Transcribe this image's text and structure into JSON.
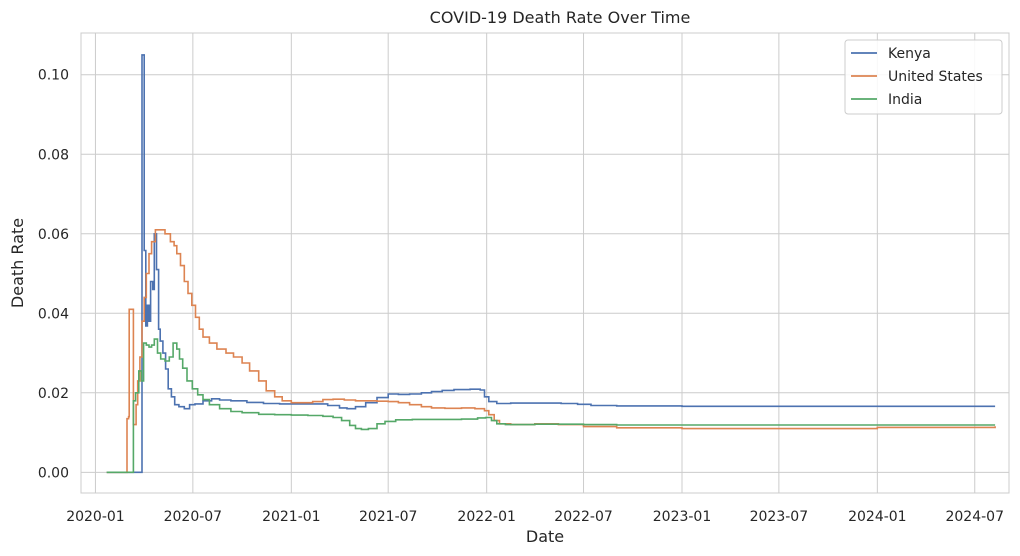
{
  "chart_data": {
    "type": "line",
    "title": "COVID-19 Death Rate Over Time",
    "xlabel": "Date",
    "ylabel": "Death Rate",
    "xlim": [
      "2019-12-05",
      "2024-09-03"
    ],
    "ylim": [
      -0.0052,
      0.1105
    ],
    "grid": true,
    "legend_position": "top-right",
    "x_ticks": [
      "2020-01-01",
      "2020-07-01",
      "2021-01-01",
      "2021-07-01",
      "2022-01-01",
      "2022-07-01",
      "2023-01-01",
      "2023-07-01",
      "2024-01-01",
      "2024-07-01"
    ],
    "x_tick_labels": [
      "2020-01",
      "2020-07",
      "2021-01",
      "2021-07",
      "2022-01",
      "2022-07",
      "2023-01",
      "2023-07",
      "2024-01",
      "2024-07"
    ],
    "y_ticks": [
      0.0,
      0.02,
      0.04,
      0.06,
      0.08,
      0.1
    ],
    "y_tick_labels": [
      "0.00",
      "0.02",
      "0.04",
      "0.06",
      "0.08",
      "0.10"
    ],
    "series": [
      {
        "name": "Kenya",
        "color": "#4c72b0",
        "points": [
          [
            "2020-01-22",
            0.0
          ],
          [
            "2020-03-13",
            0.0
          ],
          [
            "2020-03-27",
            0.0
          ],
          [
            "2020-03-28",
            0.105
          ],
          [
            "2020-04-01",
            0.0558
          ],
          [
            "2020-04-04",
            0.0368
          ],
          [
            "2020-04-07",
            0.042
          ],
          [
            "2020-04-10",
            0.038
          ],
          [
            "2020-04-13",
            0.048
          ],
          [
            "2020-04-17",
            0.046
          ],
          [
            "2020-04-20",
            0.06
          ],
          [
            "2020-04-24",
            0.051
          ],
          [
            "2020-04-28",
            0.036
          ],
          [
            "2020-05-01",
            0.033
          ],
          [
            "2020-05-06",
            0.03
          ],
          [
            "2020-05-11",
            0.026
          ],
          [
            "2020-05-16",
            0.021
          ],
          [
            "2020-05-22",
            0.019
          ],
          [
            "2020-05-28",
            0.017
          ],
          [
            "2020-06-05",
            0.0165
          ],
          [
            "2020-06-15",
            0.016
          ],
          [
            "2020-06-25",
            0.017
          ],
          [
            "2020-07-05",
            0.0172
          ],
          [
            "2020-07-20",
            0.018
          ],
          [
            "2020-08-05",
            0.0185
          ],
          [
            "2020-08-20",
            0.0182
          ],
          [
            "2020-09-10",
            0.018
          ],
          [
            "2020-10-10",
            0.0176
          ],
          [
            "2020-11-10",
            0.0173
          ],
          [
            "2020-12-10",
            0.0172
          ],
          [
            "2021-01-10",
            0.0172
          ],
          [
            "2021-02-10",
            0.0172
          ],
          [
            "2021-03-10",
            0.0168
          ],
          [
            "2021-04-01",
            0.0162
          ],
          [
            "2021-04-15",
            0.016
          ],
          [
            "2021-05-01",
            0.0165
          ],
          [
            "2021-05-20",
            0.0175
          ],
          [
            "2021-06-10",
            0.0188
          ],
          [
            "2021-07-01",
            0.0197
          ],
          [
            "2021-07-20",
            0.0196
          ],
          [
            "2021-08-10",
            0.0197
          ],
          [
            "2021-09-01",
            0.02
          ],
          [
            "2021-09-20",
            0.0203
          ],
          [
            "2021-10-10",
            0.0206
          ],
          [
            "2021-11-01",
            0.0208
          ],
          [
            "2021-12-01",
            0.0209
          ],
          [
            "2021-12-20",
            0.0207
          ],
          [
            "2021-12-28",
            0.019
          ],
          [
            "2022-01-05",
            0.0178
          ],
          [
            "2022-01-20",
            0.0173
          ],
          [
            "2022-02-15",
            0.0174
          ],
          [
            "2022-04-01",
            0.0174
          ],
          [
            "2022-05-20",
            0.0173
          ],
          [
            "2022-06-20",
            0.0171
          ],
          [
            "2022-07-15",
            0.0168
          ],
          [
            "2022-09-01",
            0.0167
          ],
          [
            "2022-11-01",
            0.0167
          ],
          [
            "2023-01-01",
            0.0166
          ],
          [
            "2023-07-01",
            0.0166
          ],
          [
            "2024-01-01",
            0.0166
          ],
          [
            "2024-08-08",
            0.0166
          ]
        ]
      },
      {
        "name": "United States",
        "color": "#dd8452",
        "points": [
          [
            "2020-01-22",
            0.0
          ],
          [
            "2020-02-28",
            0.0
          ],
          [
            "2020-02-29",
            0.0135
          ],
          [
            "2020-03-03",
            0.014
          ],
          [
            "2020-03-04",
            0.041
          ],
          [
            "2020-03-09",
            0.041
          ],
          [
            "2020-03-12",
            0.012
          ],
          [
            "2020-03-17",
            0.017
          ],
          [
            "2020-03-20",
            0.023
          ],
          [
            "2020-03-24",
            0.029
          ],
          [
            "2020-03-28",
            0.038
          ],
          [
            "2020-04-01",
            0.044
          ],
          [
            "2020-04-05",
            0.05
          ],
          [
            "2020-04-10",
            0.055
          ],
          [
            "2020-04-15",
            0.058
          ],
          [
            "2020-04-22",
            0.061
          ],
          [
            "2020-05-01",
            0.061
          ],
          [
            "2020-05-10",
            0.06
          ],
          [
            "2020-05-20",
            0.058
          ],
          [
            "2020-05-27",
            0.057
          ],
          [
            "2020-06-01",
            0.055
          ],
          [
            "2020-06-08",
            0.052
          ],
          [
            "2020-06-15",
            0.048
          ],
          [
            "2020-06-22",
            0.045
          ],
          [
            "2020-06-29",
            0.042
          ],
          [
            "2020-07-06",
            0.039
          ],
          [
            "2020-07-13",
            0.036
          ],
          [
            "2020-07-20",
            0.034
          ],
          [
            "2020-08-01",
            0.0325
          ],
          [
            "2020-08-15",
            0.031
          ],
          [
            "2020-09-01",
            0.03
          ],
          [
            "2020-09-15",
            0.029
          ],
          [
            "2020-10-01",
            0.0275
          ],
          [
            "2020-10-15",
            0.0255
          ],
          [
            "2020-11-01",
            0.023
          ],
          [
            "2020-11-15",
            0.0205
          ],
          [
            "2020-12-01",
            0.019
          ],
          [
            "2020-12-15",
            0.018
          ],
          [
            "2021-01-01",
            0.0175
          ],
          [
            "2021-01-20",
            0.0175
          ],
          [
            "2021-02-10",
            0.0178
          ],
          [
            "2021-03-01",
            0.0183
          ],
          [
            "2021-03-20",
            0.0184
          ],
          [
            "2021-04-10",
            0.0182
          ],
          [
            "2021-05-01",
            0.018
          ],
          [
            "2021-05-20",
            0.018
          ],
          [
            "2021-06-10",
            0.0179
          ],
          [
            "2021-07-01",
            0.0178
          ],
          [
            "2021-07-20",
            0.0175
          ],
          [
            "2021-08-10",
            0.017
          ],
          [
            "2021-09-01",
            0.0165
          ],
          [
            "2021-09-20",
            0.0162
          ],
          [
            "2021-10-15",
            0.0161
          ],
          [
            "2021-11-15",
            0.0162
          ],
          [
            "2021-12-10",
            0.016
          ],
          [
            "2021-12-28",
            0.0155
          ],
          [
            "2022-01-05",
            0.0145
          ],
          [
            "2022-01-15",
            0.013
          ],
          [
            "2022-01-25",
            0.0122
          ],
          [
            "2022-02-15",
            0.012
          ],
          [
            "2022-04-01",
            0.0122
          ],
          [
            "2022-05-15",
            0.012
          ],
          [
            "2022-07-01",
            0.0115
          ],
          [
            "2022-09-01",
            0.0112
          ],
          [
            "2023-01-01",
            0.011
          ],
          [
            "2023-07-01",
            0.011
          ],
          [
            "2024-01-01",
            0.0113
          ],
          [
            "2024-08-08",
            0.0116
          ]
        ]
      },
      {
        "name": "India",
        "color": "#55a868",
        "points": [
          [
            "2020-01-22",
            0.0
          ],
          [
            "2020-03-10",
            0.0
          ],
          [
            "2020-03-12",
            0.018
          ],
          [
            "2020-03-16",
            0.02
          ],
          [
            "2020-03-22",
            0.0255
          ],
          [
            "2020-03-27",
            0.023
          ],
          [
            "2020-03-31",
            0.0325
          ],
          [
            "2020-04-05",
            0.032
          ],
          [
            "2020-04-10",
            0.0315
          ],
          [
            "2020-04-15",
            0.032
          ],
          [
            "2020-04-20",
            0.0335
          ],
          [
            "2020-04-26",
            0.03
          ],
          [
            "2020-05-02",
            0.0285
          ],
          [
            "2020-05-10",
            0.028
          ],
          [
            "2020-05-18",
            0.029
          ],
          [
            "2020-05-25",
            0.0325
          ],
          [
            "2020-06-01",
            0.031
          ],
          [
            "2020-06-06",
            0.0285
          ],
          [
            "2020-06-12",
            0.0262
          ],
          [
            "2020-06-20",
            0.023
          ],
          [
            "2020-06-30",
            0.021
          ],
          [
            "2020-07-10",
            0.0195
          ],
          [
            "2020-07-20",
            0.0183
          ],
          [
            "2020-08-01",
            0.017
          ],
          [
            "2020-08-20",
            0.016
          ],
          [
            "2020-09-10",
            0.0153
          ],
          [
            "2020-10-01",
            0.015
          ],
          [
            "2020-11-01",
            0.0146
          ],
          [
            "2020-12-01",
            0.0145
          ],
          [
            "2021-01-01",
            0.0144
          ],
          [
            "2021-02-01",
            0.0143
          ],
          [
            "2021-03-01",
            0.0141
          ],
          [
            "2021-03-20",
            0.0138
          ],
          [
            "2021-04-05",
            0.013
          ],
          [
            "2021-04-20",
            0.0118
          ],
          [
            "2021-05-01",
            0.011
          ],
          [
            "2021-05-12",
            0.0108
          ],
          [
            "2021-05-25",
            0.011
          ],
          [
            "2021-06-10",
            0.0122
          ],
          [
            "2021-06-25",
            0.0128
          ],
          [
            "2021-07-15",
            0.0132
          ],
          [
            "2021-08-15",
            0.0133
          ],
          [
            "2021-09-15",
            0.0133
          ],
          [
            "2021-10-15",
            0.0133
          ],
          [
            "2021-11-15",
            0.0134
          ],
          [
            "2021-12-15",
            0.0137
          ],
          [
            "2021-12-30",
            0.0138
          ],
          [
            "2022-01-10",
            0.013
          ],
          [
            "2022-01-20",
            0.0122
          ],
          [
            "2022-02-05",
            0.012
          ],
          [
            "2022-04-01",
            0.0121
          ],
          [
            "2022-05-15",
            0.0121
          ],
          [
            "2022-07-01",
            0.012
          ],
          [
            "2022-09-01",
            0.0119
          ],
          [
            "2023-01-01",
            0.0119
          ],
          [
            "2023-07-01",
            0.0119
          ],
          [
            "2024-01-01",
            0.0119
          ],
          [
            "2024-08-08",
            0.0119
          ]
        ]
      }
    ]
  }
}
